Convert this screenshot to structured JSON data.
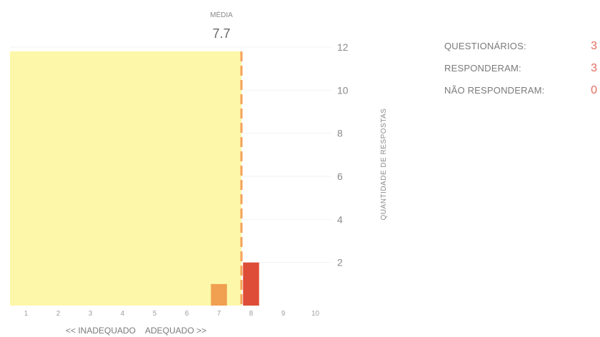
{
  "chart_data": {
    "type": "bar",
    "mean_label": "MÉDIA",
    "mean_value": 7.7,
    "mean_display": "7.7",
    "categories": [
      "1",
      "2",
      "3",
      "4",
      "5",
      "6",
      "7",
      "8",
      "9",
      "10"
    ],
    "values": [
      0,
      0,
      0,
      0,
      0,
      0,
      1,
      2,
      0,
      0
    ],
    "ylim": [
      0,
      12
    ],
    "yticks": [
      "2",
      "4",
      "6",
      "8",
      "10",
      "12"
    ],
    "ylabel": "QUANTIDADE DE RESPOSTAS",
    "xlabel_left": "<< INADEQUADO",
    "xlabel_right": "ADEQUADO >>",
    "grid": true,
    "colors": {
      "highlight_zone": "#fdf7a9",
      "bar_7": "#f0a050",
      "bar_8": "#dd4d37",
      "mean_line": "#f4a25a",
      "grid": "#f2f2f2"
    }
  },
  "stats": {
    "questionnaires_label": "QUESTIONÁRIOS:",
    "questionnaires_value": "3",
    "responded_label": "RESPONDERAM:",
    "responded_value": "3",
    "not_responded_label": "NÃO RESPONDERAM:",
    "not_responded_value": "0"
  }
}
